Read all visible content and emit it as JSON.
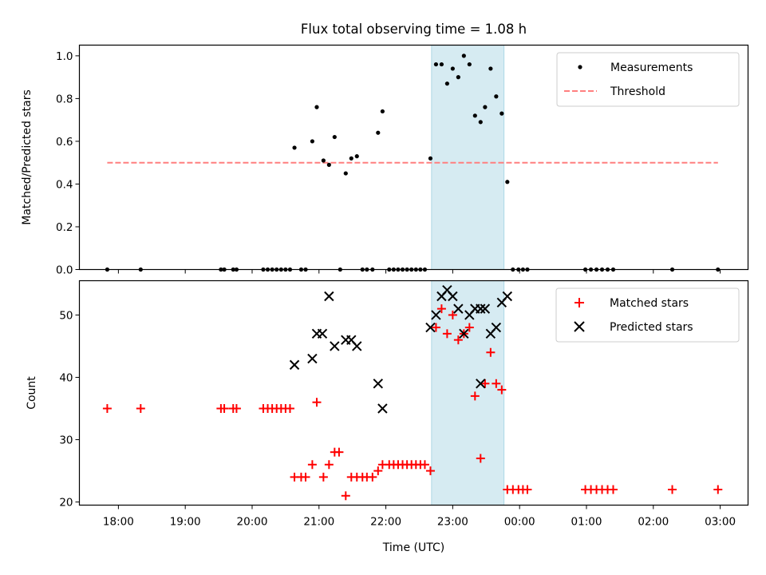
{
  "colors": {
    "measurement": "#000000",
    "threshold": "#ff7f7f",
    "matched": "#ff0000",
    "predicted": "#000000",
    "span_fill": "#add8e6"
  },
  "chart_data": [
    {
      "type": "scatter",
      "title": "Flux total observing time = 1.08 h",
      "xlabel": "",
      "ylabel": "Matched/Predicted stars",
      "xlim": [
        "17:25",
        "03:25"
      ],
      "ylim": [
        0,
        1.05
      ],
      "yticks": [
        "0.0",
        "0.2",
        "0.4",
        "0.6",
        "0.8",
        "1.0"
      ],
      "grid": false,
      "legend_position": "top-right",
      "highlight_span": {
        "from": "22:41",
        "to": "23:46"
      },
      "series": [
        {
          "name": "Measurements",
          "marker": "dot",
          "points": [
            [
              "17:50",
              0
            ],
            [
              "18:20",
              0
            ],
            [
              "19:32",
              0
            ],
            [
              "19:35",
              0
            ],
            [
              "19:43",
              0
            ],
            [
              "19:46",
              0
            ],
            [
              "20:10",
              0
            ],
            [
              "20:14",
              0
            ],
            [
              "20:18",
              0
            ],
            [
              "20:22",
              0
            ],
            [
              "20:26",
              0
            ],
            [
              "20:30",
              0
            ],
            [
              "20:34",
              0
            ],
            [
              "20:38",
              0.57
            ],
            [
              "20:44",
              0
            ],
            [
              "20:48",
              0
            ],
            [
              "20:54",
              0.6
            ],
            [
              "20:58",
              0.76
            ],
            [
              "21:04",
              0.51
            ],
            [
              "21:09",
              0.49
            ],
            [
              "21:14",
              0.62
            ],
            [
              "21:19",
              0
            ],
            [
              "21:24",
              0.45
            ],
            [
              "21:29",
              0.52
            ],
            [
              "21:34",
              0.53
            ],
            [
              "21:39",
              0
            ],
            [
              "21:43",
              0
            ],
            [
              "21:48",
              0
            ],
            [
              "21:53",
              0.64
            ],
            [
              "21:57",
              0.74
            ],
            [
              "22:03",
              0
            ],
            [
              "22:07",
              0
            ],
            [
              "22:11",
              0
            ],
            [
              "22:15",
              0
            ],
            [
              "22:19",
              0
            ],
            [
              "22:23",
              0
            ],
            [
              "22:27",
              0
            ],
            [
              "22:31",
              0
            ],
            [
              "22:35",
              0
            ],
            [
              "22:40",
              0.52
            ],
            [
              "22:45",
              0.96
            ],
            [
              "22:50",
              0.96
            ],
            [
              "22:55",
              0.87
            ],
            [
              "23:00",
              0.94
            ],
            [
              "23:05",
              0.9
            ],
            [
              "23:10",
              1.0
            ],
            [
              "23:15",
              0.96
            ],
            [
              "23:20",
              0.72
            ],
            [
              "23:25",
              0.69
            ],
            [
              "23:29",
              0.76
            ],
            [
              "23:34",
              0.94
            ],
            [
              "23:39",
              0.81
            ],
            [
              "23:44",
              0.73
            ],
            [
              "23:49",
              0.41
            ],
            [
              "23:54",
              0
            ],
            [
              "23:59",
              0
            ],
            [
              "00:03",
              0
            ],
            [
              "00:07",
              0
            ],
            [
              "00:59",
              0
            ],
            [
              "01:04",
              0
            ],
            [
              "01:09",
              0
            ],
            [
              "01:14",
              0
            ],
            [
              "01:19",
              0
            ],
            [
              "01:24",
              0
            ],
            [
              "02:17",
              0
            ],
            [
              "02:58",
              0
            ]
          ]
        },
        {
          "name": "Threshold",
          "style": "dashed-line",
          "points": [
            [
              "17:50",
              0.5
            ],
            [
              "02:58",
              0.5
            ]
          ]
        }
      ]
    },
    {
      "type": "scatter",
      "title": "",
      "xlabel": "Time (UTC)",
      "ylabel": "Count",
      "xlim": [
        "17:25",
        "03:25"
      ],
      "ylim": [
        19.5,
        55.5
      ],
      "yticks": [
        "20",
        "30",
        "40",
        "50"
      ],
      "xticks": [
        "18:00",
        "19:00",
        "20:00",
        "21:00",
        "22:00",
        "23:00",
        "00:00",
        "01:00",
        "02:00",
        "03:00"
      ],
      "grid": false,
      "legend_position": "top-right",
      "highlight_span": {
        "from": "22:41",
        "to": "23:46"
      },
      "series": [
        {
          "name": "Matched stars",
          "marker": "plus",
          "points": [
            [
              "17:50",
              35
            ],
            [
              "18:20",
              35
            ],
            [
              "19:32",
              35
            ],
            [
              "19:35",
              35
            ],
            [
              "19:43",
              35
            ],
            [
              "19:46",
              35
            ],
            [
              "20:10",
              35
            ],
            [
              "20:14",
              35
            ],
            [
              "20:18",
              35
            ],
            [
              "20:22",
              35
            ],
            [
              "20:26",
              35
            ],
            [
              "20:30",
              35
            ],
            [
              "20:34",
              35
            ],
            [
              "20:38",
              24
            ],
            [
              "20:44",
              24
            ],
            [
              "20:48",
              24
            ],
            [
              "20:54",
              26
            ],
            [
              "20:58",
              36
            ],
            [
              "21:04",
              24
            ],
            [
              "21:09",
              26
            ],
            [
              "21:14",
              28
            ],
            [
              "21:18",
              28
            ],
            [
              "21:24",
              21
            ],
            [
              "21:29",
              24
            ],
            [
              "21:34",
              24
            ],
            [
              "21:39",
              24
            ],
            [
              "21:43",
              24
            ],
            [
              "21:48",
              24
            ],
            [
              "21:53",
              25
            ],
            [
              "21:57",
              26
            ],
            [
              "22:03",
              26
            ],
            [
              "22:07",
              26
            ],
            [
              "22:11",
              26
            ],
            [
              "22:15",
              26
            ],
            [
              "22:19",
              26
            ],
            [
              "22:23",
              26
            ],
            [
              "22:27",
              26
            ],
            [
              "22:31",
              26
            ],
            [
              "22:35",
              26
            ],
            [
              "22:40",
              25
            ],
            [
              "22:45",
              48
            ],
            [
              "22:50",
              51
            ],
            [
              "22:55",
              47
            ],
            [
              "23:00",
              50
            ],
            [
              "23:05",
              46
            ],
            [
              "23:10",
              47
            ],
            [
              "23:15",
              48
            ],
            [
              "23:20",
              37
            ],
            [
              "23:25",
              27
            ],
            [
              "23:29",
              39
            ],
            [
              "23:34",
              44
            ],
            [
              "23:39",
              39
            ],
            [
              "23:44",
              38
            ],
            [
              "23:49",
              22
            ],
            [
              "23:54",
              22
            ],
            [
              "23:59",
              22
            ],
            [
              "00:03",
              22
            ],
            [
              "00:07",
              22
            ],
            [
              "00:59",
              22
            ],
            [
              "01:04",
              22
            ],
            [
              "01:09",
              22
            ],
            [
              "01:14",
              22
            ],
            [
              "01:19",
              22
            ],
            [
              "01:24",
              22
            ],
            [
              "02:17",
              22
            ],
            [
              "02:58",
              22
            ]
          ]
        },
        {
          "name": "Predicted stars",
          "marker": "x",
          "points": [
            [
              "20:38",
              42
            ],
            [
              "20:54",
              43
            ],
            [
              "20:58",
              47
            ],
            [
              "21:03",
              47
            ],
            [
              "21:09",
              53
            ],
            [
              "21:14",
              45
            ],
            [
              "21:24",
              46
            ],
            [
              "21:29",
              46
            ],
            [
              "21:34",
              45
            ],
            [
              "21:53",
              39
            ],
            [
              "21:57",
              35
            ],
            [
              "22:40",
              48
            ],
            [
              "22:45",
              50
            ],
            [
              "22:50",
              53
            ],
            [
              "22:55",
              54
            ],
            [
              "23:00",
              53
            ],
            [
              "23:05",
              51
            ],
            [
              "23:10",
              47
            ],
            [
              "23:15",
              50
            ],
            [
              "23:20",
              51
            ],
            [
              "23:25",
              39
            ],
            [
              "23:25",
              51
            ],
            [
              "23:29",
              51
            ],
            [
              "23:34",
              47
            ],
            [
              "23:39",
              48
            ],
            [
              "23:44",
              52
            ],
            [
              "23:49",
              53
            ]
          ]
        }
      ]
    }
  ]
}
